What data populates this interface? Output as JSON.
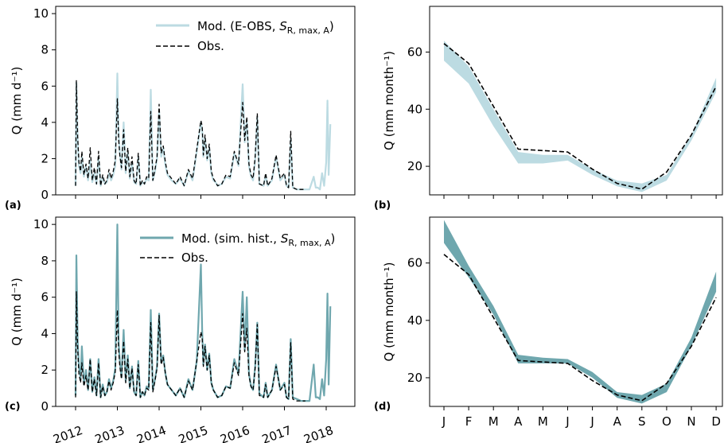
{
  "chart_data": [
    {
      "panel": "(a)",
      "type": "line",
      "ylabel": "Q (mm d⁻¹)",
      "ylim": [
        0,
        10.4
      ],
      "yticks": [
        0,
        2,
        4,
        6,
        8,
        10
      ],
      "xlim": [
        2012.0,
        2018.15
      ],
      "legend": {
        "placement": "top-right",
        "entries": [
          "Mod. (E-OBS, S_R,max,A)",
          "Obs."
        ]
      },
      "series": [
        {
          "name": "Mod. (E-OBS, S_R,max,A)",
          "color": "#bcdbe2",
          "x": [
            2012.0,
            2012.02,
            2012.05,
            2012.08,
            2012.12,
            2012.15,
            2012.2,
            2012.25,
            2012.3,
            2012.35,
            2012.4,
            2012.45,
            2012.5,
            2012.55,
            2012.6,
            2012.65,
            2012.7,
            2012.75,
            2012.8,
            2012.85,
            2012.9,
            2012.95,
            2013.0,
            2013.03,
            2013.06,
            2013.1,
            2013.15,
            2013.2,
            2013.25,
            2013.3,
            2013.35,
            2013.4,
            2013.45,
            2013.5,
            2013.55,
            2013.6,
            2013.65,
            2013.7,
            2013.75,
            2013.8,
            2013.85,
            2013.9,
            2013.95,
            2014.0,
            2014.05,
            2014.1,
            2014.15,
            2014.2,
            2014.3,
            2014.4,
            2014.5,
            2014.6,
            2014.7,
            2014.8,
            2014.9,
            2015.0,
            2015.03,
            2015.06,
            2015.1,
            2015.15,
            2015.2,
            2015.25,
            2015.3,
            2015.35,
            2015.4,
            2015.5,
            2015.6,
            2015.7,
            2015.8,
            2015.9,
            2016.0,
            2016.05,
            2016.1,
            2016.15,
            2016.2,
            2016.25,
            2016.3,
            2016.35,
            2016.4,
            2016.5,
            2016.55,
            2016.6,
            2016.7,
            2016.8,
            2016.9,
            2017.0,
            2017.05,
            2017.1,
            2017.15,
            2017.2,
            2017.3,
            2017.4,
            2017.5,
            2017.6,
            2017.7,
            2017.75,
            2017.8,
            2017.85,
            2017.9,
            2017.95,
            2018.0,
            2018.03,
            2018.06,
            2018.1
          ],
          "y": [
            0.5,
            6.2,
            3.0,
            1.6,
            1.2,
            2.1,
            1.0,
            1.6,
            0.8,
            1.9,
            0.7,
            1.2,
            0.6,
            2.1,
            0.5,
            1.0,
            0.6,
            0.7,
            1.2,
            0.8,
            1.1,
            1.6,
            6.7,
            3.3,
            2.3,
            1.4,
            4.0,
            1.2,
            2.4,
            0.9,
            1.8,
            0.7,
            0.6,
            2.1,
            0.5,
            0.7,
            0.6,
            0.9,
            0.8,
            5.8,
            0.8,
            1.3,
            2.0,
            4.6,
            2.1,
            2.6,
            1.6,
            1.1,
            0.8,
            0.6,
            0.9,
            0.5,
            1.3,
            0.8,
            2.4,
            4.0,
            3.6,
            2.1,
            3.1,
            1.9,
            2.6,
            1.2,
            0.8,
            0.7,
            0.5,
            0.6,
            1.0,
            0.9,
            2.3,
            1.6,
            6.1,
            2.9,
            4.1,
            1.6,
            1.0,
            0.8,
            1.9,
            4.3,
            0.6,
            0.5,
            1.1,
            0.5,
            0.8,
            2.1,
            0.8,
            1.1,
            0.5,
            0.4,
            3.1,
            0.4,
            0.3,
            0.3,
            0.3,
            0.3,
            1.0,
            0.4,
            0.4,
            0.3,
            1.2,
            0.5,
            1.8,
            5.2,
            1.1,
            3.9
          ]
        },
        {
          "name": "Obs.",
          "color": "#000000",
          "x": [
            2012.0,
            2012.02,
            2012.05,
            2012.08,
            2012.12,
            2012.15,
            2012.2,
            2012.25,
            2012.3,
            2012.35,
            2012.4,
            2012.45,
            2012.5,
            2012.55,
            2012.6,
            2012.65,
            2012.7,
            2012.75,
            2012.8,
            2012.85,
            2012.9,
            2012.95,
            2013.0,
            2013.03,
            2013.06,
            2013.1,
            2013.15,
            2013.2,
            2013.25,
            2013.3,
            2013.35,
            2013.4,
            2013.45,
            2013.5,
            2013.55,
            2013.6,
            2013.65,
            2013.7,
            2013.75,
            2013.8,
            2013.85,
            2013.9,
            2013.95,
            2014.0,
            2014.05,
            2014.1,
            2014.15,
            2014.2,
            2014.3,
            2014.4,
            2014.5,
            2014.6,
            2014.7,
            2014.8,
            2014.9,
            2015.0,
            2015.03,
            2015.06,
            2015.1,
            2015.15,
            2015.2,
            2015.25,
            2015.3,
            2015.35,
            2015.4,
            2015.5,
            2015.6,
            2015.7,
            2015.8,
            2015.9,
            2016.0,
            2016.05,
            2016.1,
            2016.15,
            2016.2,
            2016.25,
            2016.3,
            2016.35,
            2016.4,
            2016.5,
            2016.55,
            2016.6,
            2016.7,
            2016.8,
            2016.9,
            2017.0,
            2017.05,
            2017.1,
            2017.15,
            2017.2,
            2017.3,
            2017.4,
            2017.5
          ],
          "y": [
            0.5,
            6.3,
            3.2,
            1.8,
            1.3,
            2.4,
            1.1,
            1.7,
            0.9,
            2.6,
            0.8,
            1.5,
            0.6,
            2.4,
            0.5,
            1.1,
            0.6,
            0.8,
            1.4,
            0.9,
            1.3,
            1.9,
            5.3,
            3.1,
            2.2,
            1.5,
            3.6,
            1.3,
            2.6,
            1.0,
            2.1,
            0.8,
            0.6,
            2.3,
            0.5,
            0.8,
            0.6,
            1.0,
            0.9,
            4.6,
            0.8,
            1.4,
            2.1,
            5.0,
            2.3,
            2.7,
            1.8,
            1.2,
            0.9,
            0.6,
            1.0,
            0.5,
            1.4,
            0.9,
            2.5,
            4.1,
            3.8,
            2.2,
            3.3,
            2.0,
            2.8,
            1.3,
            0.9,
            0.7,
            0.5,
            0.6,
            1.1,
            1.0,
            2.4,
            1.7,
            5.1,
            3.0,
            4.3,
            1.7,
            1.1,
            0.9,
            2.1,
            4.5,
            0.6,
            0.5,
            1.2,
            0.5,
            0.9,
            2.2,
            0.9,
            1.2,
            0.5,
            0.4,
            3.5,
            0.4,
            0.3,
            0.3,
            0.3
          ]
        }
      ]
    },
    {
      "panel": "(b)",
      "type": "area",
      "ylabel": "Q (mm month⁻¹)",
      "ylim": [
        10,
        76
      ],
      "yticks": [
        20,
        40,
        60
      ],
      "categories": [
        "J",
        "F",
        "M",
        "A",
        "M",
        "J",
        "J",
        "A",
        "S",
        "O",
        "N",
        "D"
      ],
      "series": [
        {
          "name": "Mod. (E-OBS, S_R,max,A)",
          "color": "#bcdbe2",
          "lower": [
            57,
            49,
            34,
            21,
            21,
            22,
            17,
            13,
            11,
            15,
            29,
            46
          ],
          "upper": [
            64,
            55,
            40,
            25,
            24,
            24,
            19,
            15,
            14,
            17,
            31,
            51
          ]
        },
        {
          "name": "Obs.",
          "color": "#000000",
          "values": [
            63,
            56,
            41,
            26,
            25.5,
            25,
            19,
            14,
            12,
            18,
            31,
            48
          ]
        }
      ]
    },
    {
      "panel": "(c)",
      "type": "line",
      "xlabel": "",
      "ylabel": "Q (mm d⁻¹)",
      "ylim": [
        0,
        10.4
      ],
      "yticks": [
        0,
        2,
        4,
        6,
        8,
        10
      ],
      "xlim": [
        2012.0,
        2018.15
      ],
      "xticks": [
        "2012",
        "2013",
        "2014",
        "2015",
        "2016",
        "2017",
        "2018"
      ],
      "legend": {
        "placement": "top-right",
        "entries": [
          "Mod. (sim. hist., S_R,max,A)",
          "Obs."
        ]
      },
      "series": [
        {
          "name": "Mod. (sim. hist., S_R,max,A)",
          "color": "#6fa7ae",
          "x": [
            2012.0,
            2012.02,
            2012.05,
            2012.08,
            2012.12,
            2012.15,
            2012.2,
            2012.25,
            2012.3,
            2012.35,
            2012.4,
            2012.45,
            2012.5,
            2012.55,
            2012.6,
            2012.65,
            2012.7,
            2012.75,
            2012.8,
            2012.85,
            2012.9,
            2012.95,
            2013.0,
            2013.03,
            2013.06,
            2013.1,
            2013.15,
            2013.2,
            2013.25,
            2013.3,
            2013.35,
            2013.4,
            2013.45,
            2013.5,
            2013.55,
            2013.6,
            2013.65,
            2013.7,
            2013.75,
            2013.8,
            2013.85,
            2013.9,
            2013.95,
            2014.0,
            2014.05,
            2014.1,
            2014.15,
            2014.2,
            2014.3,
            2014.4,
            2014.5,
            2014.6,
            2014.7,
            2014.8,
            2014.9,
            2015.0,
            2015.03,
            2015.06,
            2015.1,
            2015.15,
            2015.2,
            2015.25,
            2015.3,
            2015.35,
            2015.4,
            2015.5,
            2015.6,
            2015.7,
            2015.8,
            2015.9,
            2016.0,
            2016.05,
            2016.1,
            2016.15,
            2016.2,
            2016.25,
            2016.3,
            2016.35,
            2016.4,
            2016.5,
            2016.55,
            2016.6,
            2016.7,
            2016.8,
            2016.9,
            2017.0,
            2017.05,
            2017.1,
            2017.15,
            2017.2,
            2017.3,
            2017.4,
            2017.5,
            2017.6,
            2017.7,
            2017.75,
            2017.8,
            2017.85,
            2017.9,
            2017.95,
            2018.0,
            2018.03,
            2018.06,
            2018.1
          ],
          "y": [
            0.6,
            8.3,
            3.6,
            2.2,
            1.5,
            3.3,
            1.2,
            2.0,
            0.9,
            2.6,
            0.8,
            1.6,
            0.6,
            2.6,
            0.5,
            1.2,
            0.6,
            0.8,
            1.5,
            1.0,
            1.4,
            2.1,
            10.0,
            3.5,
            2.5,
            1.6,
            4.2,
            1.4,
            2.8,
            1.0,
            2.2,
            0.8,
            0.6,
            2.5,
            0.5,
            0.8,
            0.6,
            1.1,
            1.0,
            5.3,
            0.9,
            1.5,
            2.2,
            5.1,
            2.4,
            2.8,
            1.8,
            1.2,
            0.9,
            0.6,
            1.0,
            0.5,
            1.5,
            0.9,
            2.5,
            7.8,
            4.2,
            2.3,
            3.4,
            2.0,
            2.9,
            1.3,
            0.9,
            0.7,
            0.5,
            0.6,
            1.1,
            1.0,
            2.6,
            1.8,
            6.3,
            3.1,
            6.0,
            1.8,
            1.1,
            0.9,
            2.2,
            4.6,
            0.7,
            0.5,
            1.3,
            0.5,
            0.9,
            2.3,
            0.9,
            1.3,
            0.5,
            0.4,
            3.7,
            0.5,
            0.4,
            0.3,
            0.3,
            0.3,
            2.3,
            0.5,
            0.5,
            0.4,
            1.5,
            0.6,
            2.6,
            6.2,
            1.2,
            5.5
          ]
        },
        {
          "name": "Obs.",
          "color": "#000000",
          "x": [
            2012.0,
            2012.02,
            2012.05,
            2012.08,
            2012.12,
            2012.15,
            2012.2,
            2012.25,
            2012.3,
            2012.35,
            2012.4,
            2012.45,
            2012.5,
            2012.55,
            2012.6,
            2012.65,
            2012.7,
            2012.75,
            2012.8,
            2012.85,
            2012.9,
            2012.95,
            2013.0,
            2013.03,
            2013.06,
            2013.1,
            2013.15,
            2013.2,
            2013.25,
            2013.3,
            2013.35,
            2013.4,
            2013.45,
            2013.5,
            2013.55,
            2013.6,
            2013.65,
            2013.7,
            2013.75,
            2013.8,
            2013.85,
            2013.9,
            2013.95,
            2014.0,
            2014.05,
            2014.1,
            2014.15,
            2014.2,
            2014.3,
            2014.4,
            2014.5,
            2014.6,
            2014.7,
            2014.8,
            2014.9,
            2015.0,
            2015.03,
            2015.06,
            2015.1,
            2015.15,
            2015.2,
            2015.25,
            2015.3,
            2015.35,
            2015.4,
            2015.5,
            2015.6,
            2015.7,
            2015.8,
            2015.9,
            2016.0,
            2016.05,
            2016.1,
            2016.15,
            2016.2,
            2016.25,
            2016.3,
            2016.35,
            2016.4,
            2016.5,
            2016.55,
            2016.6,
            2016.7,
            2016.8,
            2016.9,
            2017.0,
            2017.05,
            2017.1,
            2017.15,
            2017.2,
            2017.3,
            2017.4,
            2017.5
          ],
          "y": [
            0.5,
            6.3,
            3.2,
            1.8,
            1.3,
            2.4,
            1.1,
            1.7,
            0.9,
            2.6,
            0.8,
            1.5,
            0.6,
            2.4,
            0.5,
            1.1,
            0.6,
            0.8,
            1.4,
            0.9,
            1.3,
            1.9,
            5.3,
            3.1,
            2.2,
            1.5,
            3.6,
            1.3,
            2.6,
            1.0,
            2.1,
            0.8,
            0.6,
            2.3,
            0.5,
            0.8,
            0.6,
            1.0,
            0.9,
            4.6,
            0.8,
            1.4,
            2.1,
            5.0,
            2.3,
            2.7,
            1.8,
            1.2,
            0.9,
            0.6,
            1.0,
            0.5,
            1.4,
            0.9,
            2.5,
            4.1,
            3.8,
            2.2,
            3.3,
            2.0,
            2.8,
            1.3,
            0.9,
            0.7,
            0.5,
            0.6,
            1.1,
            1.0,
            2.4,
            1.7,
            5.1,
            3.0,
            4.3,
            1.7,
            1.1,
            0.9,
            2.1,
            4.5,
            0.6,
            0.5,
            1.2,
            0.5,
            0.9,
            2.2,
            0.9,
            1.2,
            0.5,
            0.4,
            3.5,
            0.4,
            0.3,
            0.3,
            0.3
          ]
        }
      ]
    },
    {
      "panel": "(d)",
      "type": "area",
      "ylabel": "Q (mm month⁻¹)",
      "ylim": [
        10,
        76
      ],
      "yticks": [
        20,
        40,
        60
      ],
      "categories": [
        "J",
        "F",
        "M",
        "A",
        "M",
        "J",
        "J",
        "A",
        "S",
        "O",
        "N",
        "D"
      ],
      "series": [
        {
          "name": "Mod. (sim. hist., S_R,max,A)",
          "color": "#6fa7ae",
          "lower": [
            67,
            55,
            42,
            25,
            25,
            25,
            20,
            13,
            11,
            15,
            31,
            50
          ],
          "upper": [
            75,
            59,
            45,
            28,
            27,
            26.5,
            22,
            15,
            14,
            18,
            34,
            57
          ]
        },
        {
          "name": "Obs.",
          "color": "#000000",
          "values": [
            63,
            56,
            41,
            26,
            25.5,
            25,
            19,
            14,
            12,
            18,
            31,
            48
          ]
        }
      ]
    }
  ]
}
